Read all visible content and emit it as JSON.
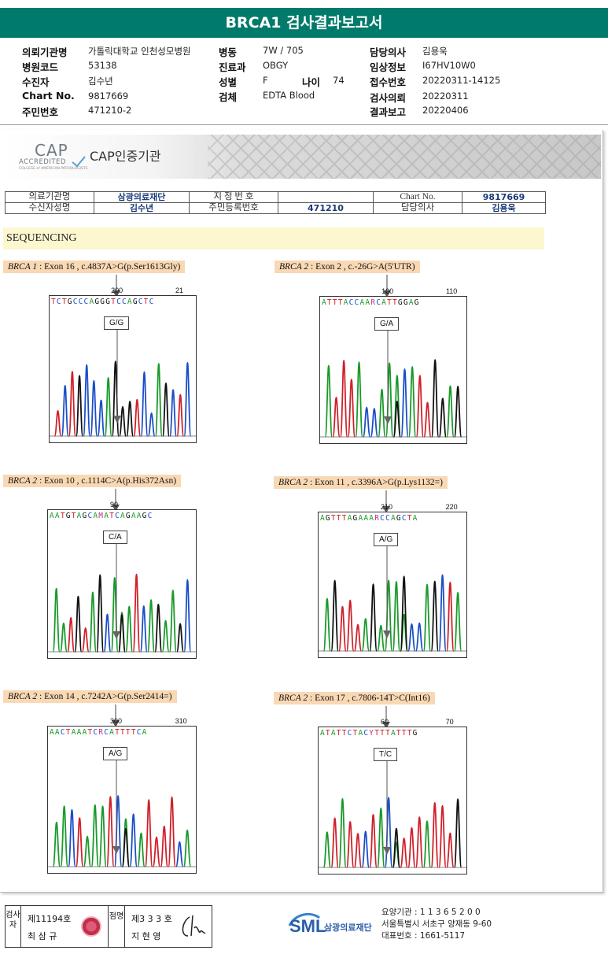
{
  "title": "BRCA1 검사결과보고서",
  "header": {
    "r1": {
      "k1": "의뢰기관명",
      "v1": "가톨릭대학교 인천성모병원",
      "k2": "병동",
      "v2": "7W / 705",
      "k3": "담당의사",
      "v3": "김용욱"
    },
    "r2": {
      "k1": "병원코드",
      "v1": "53138",
      "k2": "진료과",
      "v2": "OBGY",
      "k3": "임상정보",
      "v3": "I67HV10W0"
    },
    "r3": {
      "k1": "수진자",
      "v1": "김수년",
      "k2": "성별",
      "v2": "F",
      "k2b": "나이",
      "v2b": "74",
      "k3": "접수번호",
      "v3": "20220311-14125"
    },
    "r4": {
      "k1": "Chart No.",
      "v1": "9817669",
      "k2": "검체",
      "v2": "EDTA Blood",
      "k3": "검사의뢰",
      "v3": "20220311"
    },
    "r5": {
      "k1": "주민번호",
      "v1": "471210-2",
      "k3": "결과보고",
      "v3": "20220406"
    }
  },
  "cap": {
    "logo_big": "CAP",
    "logo_accredited": "ACCREDITED",
    "logo_small": "COLLEGE of AMERICAN PATHOLOGISTS",
    "label": "CAP인증기관"
  },
  "info_table": {
    "k_inst": "의료기관명",
    "v_inst": "삼광의료재단",
    "k_designation": "지 정 번 호",
    "v_designation": "",
    "k_chart": "Chart No.",
    "v_chart": "9817669",
    "k_name": "수신자성명",
    "v_name": "김수년",
    "k_rrn": "주민등록번호",
    "v_rrn": "471210",
    "k_doctor": "담당의사",
    "v_doctor": "김용욱"
  },
  "sequencing_heading": "SEQUENCING",
  "panels": [
    {
      "gene": "BRCA 1",
      "variant": " : Exon 16 , c.4837A>G(p.Ser1613Gly)",
      "seq": "TCTGCCCAGGGTCCAGCTC",
      "pos1": "200",
      "pos2": "21",
      "call": "G/G",
      "colors": {
        "base": "#000"
      }
    },
    {
      "gene": "BRCA 2",
      "variant": " : Exon 2 , c.-26G>A(5'UTR)",
      "seq": "ATTTACCAARCATTGGAG",
      "pos1": "100",
      "pos2": "110",
      "call": "G/A"
    },
    {
      "gene": "BRCA 2",
      "variant": " : Exon 10 , c.1114C>A(p.His372Asn)",
      "seq": "AATGTAGCAMATCAGAAGC",
      "pos1": "90",
      "pos2": "",
      "call": "C/A"
    },
    {
      "gene": "BRCA 2",
      "variant": " : Exon 11 , c.3396A>G(p.Lys1132=)",
      "seq": "AGTTTAGAAARCCAGCTA",
      "pos1": "210",
      "pos2": "220",
      "call": "A/G"
    },
    {
      "gene": "BRCA 2",
      "variant": " : Exon 14 , c.7242A>G(p.Ser2414=)",
      "seq": "AACTAAATCRCATTTTCA",
      "pos1": "300",
      "pos2": "310",
      "call": "A/G"
    },
    {
      "gene": "BRCA 2",
      "variant": " : Exon 17 , c.7806-14T>C(Int16)",
      "seq": "ATATTCTACYTTTATTTG",
      "pos1": "60",
      "pos2": "70",
      "call": "T/C"
    }
  ],
  "footer": {
    "sig1_role": "검사자",
    "sig1_no": "제11194호",
    "sig1_name": "최 삼 규",
    "sig2_role": "점명",
    "sig2_no": "제3 3 3 호",
    "sig2_name": "지 현 영",
    "org_logo": "SML",
    "org_name": "삼광의료재단",
    "addr1": "요양기관 : 1 1 3 6 5 2 0 0",
    "addr2": "서울특별시 서초구 양재동 9-60",
    "addr3": "대표번호 : 1661-5117"
  },
  "base_colors": {
    "A": "#1a9a2a",
    "C": "#1a4ec8",
    "G": "#111111",
    "T": "#d0202a"
  }
}
